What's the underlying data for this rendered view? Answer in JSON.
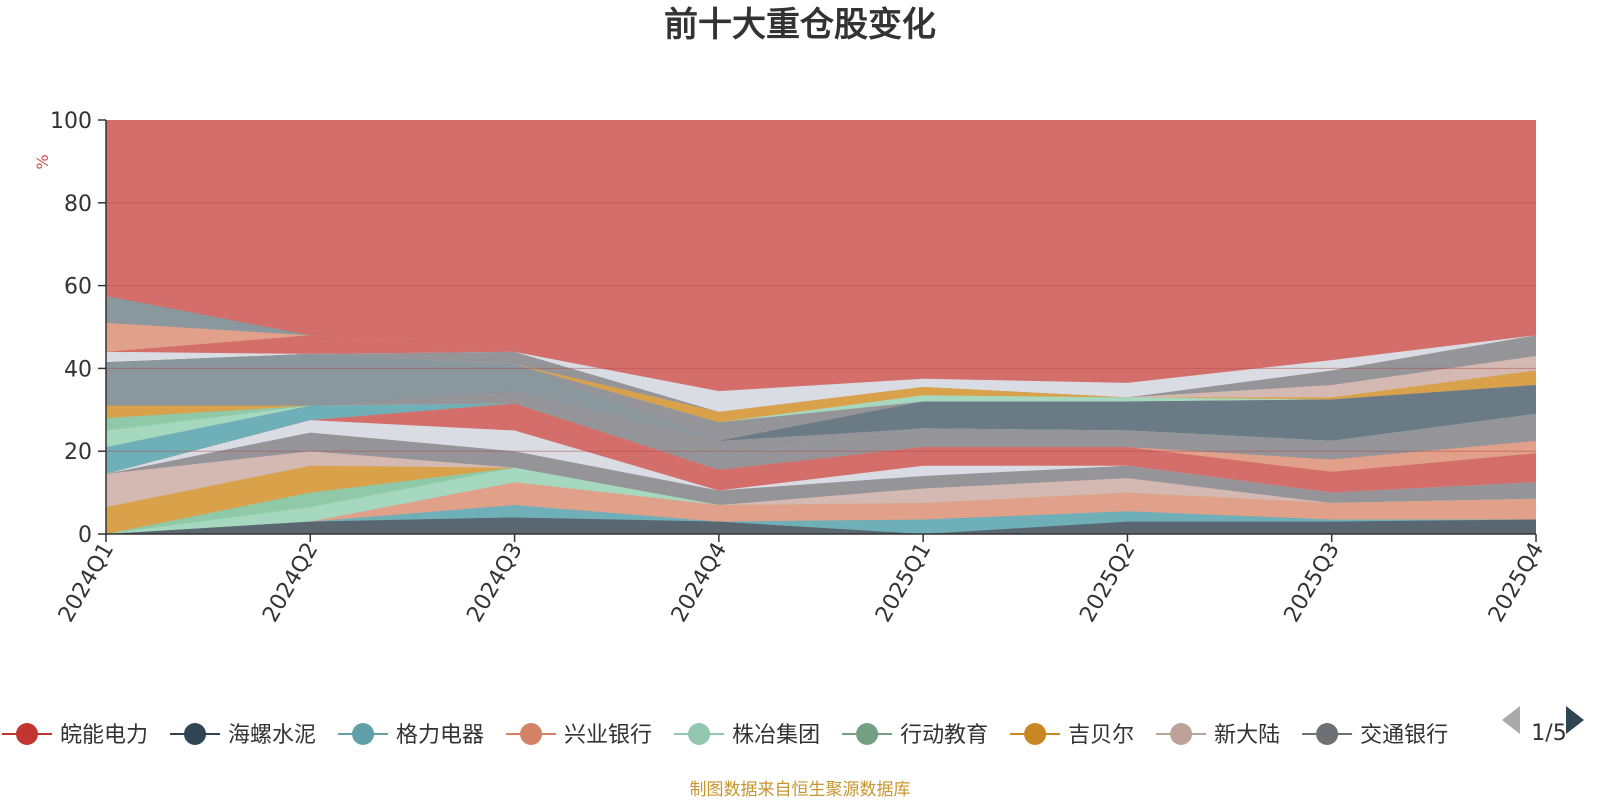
{
  "chart_data": {
    "type": "area",
    "title": "前十大重仓股变化",
    "ylabel": "%",
    "ylim": [
      0,
      100
    ],
    "yticks": [
      0,
      20,
      40,
      60,
      80,
      100
    ],
    "x": [
      "2024Q1",
      "2024Q2",
      "2024Q3",
      "2024Q4",
      "2025Q1",
      "2025Q2",
      "2025Q3",
      "2025Q4"
    ],
    "grid": true,
    "legend_position": "bottom",
    "legend_page": "1/5",
    "source": "制图数据来自恒生聚源数据库",
    "layers": [
      {
        "color": "#5b6770",
        "values": [
          0,
          3,
          4,
          3,
          0,
          3,
          3,
          3.5
        ]
      },
      {
        "color": "#6fb0b8",
        "values": [
          0,
          3,
          7,
          3,
          3.5,
          5.5,
          3.5,
          3.5
        ]
      },
      {
        "color": "#e0a08a",
        "values": [
          0,
          3,
          12.5,
          7,
          7.5,
          10,
          7.5,
          8.5
        ]
      },
      {
        "color": "#a6d8c0",
        "values": [
          0,
          6.5,
          16,
          7,
          7.5,
          10,
          7.5,
          8.5
        ]
      },
      {
        "color": "#8fc9a8",
        "values": [
          0,
          10,
          16,
          7,
          7.5,
          10,
          7.5,
          8.5
        ]
      },
      {
        "color": "#d9a24a",
        "values": [
          6.5,
          16.5,
          16,
          7,
          7.5,
          10,
          7.5,
          8.5
        ]
      },
      {
        "color": "#d4b8b2",
        "values": [
          14.5,
          20,
          16,
          7,
          11,
          13.5,
          7.5,
          8.5
        ]
      },
      {
        "color": "#949499",
        "values": [
          14.5,
          24.5,
          20,
          10.5,
          14,
          16.5,
          10,
          12.5
        ]
      },
      {
        "color": "#d9dce2",
        "values": [
          14.5,
          27.5,
          25,
          10.5,
          16.5,
          16.5,
          10,
          12.5
        ]
      },
      {
        "color": "#d46e6b",
        "values": [
          14.5,
          27.5,
          31.5,
          15.5,
          21,
          21,
          15,
          19.5
        ]
      },
      {
        "color": "#e0a08a",
        "values": [
          14.5,
          27.5,
          31.5,
          15.5,
          21,
          21,
          18,
          22.5
        ]
      },
      {
        "color": "#949499",
        "values": [
          14.5,
          27.5,
          31.5,
          18.5,
          25.5,
          25,
          22.5,
          29
        ]
      },
      {
        "color": "#6fb0b8",
        "values": [
          21,
          31,
          31.5,
          18.5,
          25.5,
          25,
          22.5,
          29
        ]
      },
      {
        "color": "#a6d8c0",
        "values": [
          25,
          31,
          31.5,
          18.5,
          25.5,
          25,
          22.5,
          29
        ]
      },
      {
        "color": "#8fc9a8",
        "values": [
          28,
          31,
          31.5,
          18.5,
          25.5,
          25,
          22.5,
          29
        ]
      },
      {
        "color": "#d9a24a",
        "values": [
          31,
          31,
          31.5,
          18.5,
          25.5,
          25,
          22.5,
          29
        ]
      },
      {
        "color": "#949499",
        "values": [
          31,
          31,
          34.5,
          22.5,
          25.5,
          25,
          22.5,
          29
        ]
      },
      {
        "color": "#6b7b85",
        "values": [
          31,
          31,
          34.5,
          22.5,
          32,
          32,
          32.5,
          36
        ]
      },
      {
        "color": "#8a979d",
        "values": [
          41.5,
          43.5,
          41,
          22.5,
          32,
          32,
          32.5,
          36
        ]
      },
      {
        "color": "#949499",
        "values": [
          41.5,
          43.5,
          41,
          27,
          32,
          32,
          32.5,
          36
        ]
      },
      {
        "color": "#a6d8c0",
        "values": [
          41.5,
          43.5,
          41,
          27,
          33.5,
          33,
          32.5,
          36
        ]
      },
      {
        "color": "#d9a24a",
        "values": [
          41.5,
          43.5,
          41,
          29.5,
          35.5,
          33,
          33,
          39.5
        ]
      },
      {
        "color": "#d4b8b2",
        "values": [
          41.5,
          43.5,
          41,
          29.5,
          35.5,
          33,
          36,
          43
        ]
      },
      {
        "color": "#949499",
        "values": [
          41.5,
          43.5,
          44,
          29.5,
          35.5,
          33,
          39.5,
          48
        ]
      },
      {
        "color": "#d9dce2",
        "values": [
          44,
          43.5,
          44,
          34.5,
          37.5,
          36.5,
          42,
          48
        ]
      },
      {
        "color": "#d46e6b",
        "values": [
          44,
          48,
          44,
          34.5,
          37.5,
          36.5,
          42,
          48
        ]
      },
      {
        "color": "#e0a08a",
        "values": [
          51,
          48,
          44,
          34.5,
          37.5,
          36.5,
          42,
          48
        ]
      },
      {
        "color": "#8a979d",
        "values": [
          57.5,
          48,
          44,
          34.5,
          37.5,
          36.5,
          42,
          48
        ]
      },
      {
        "color": "#d46e6b",
        "values": [
          100,
          100,
          100,
          100,
          100,
          100,
          100,
          100
        ]
      }
    ],
    "series": [
      {
        "name": "皖能电力",
        "color": "#c23531"
      },
      {
        "name": "海螺水泥",
        "color": "#2f4554"
      },
      {
        "name": "格力电器",
        "color": "#61a0a8"
      },
      {
        "name": "兴业银行",
        "color": "#d48265"
      },
      {
        "name": "株冶集团",
        "color": "#91c7ae"
      },
      {
        "name": "行动教育",
        "color": "#749f83"
      },
      {
        "name": "吉贝尔",
        "color": "#ca8622"
      },
      {
        "name": "新大陆",
        "color": "#bda29a"
      },
      {
        "name": "交通银行",
        "color": "#6e7074"
      }
    ]
  }
}
